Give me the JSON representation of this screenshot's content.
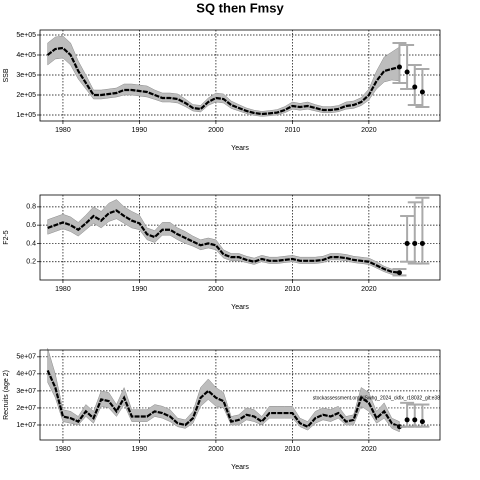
{
  "title": "SQ then Fmsy",
  "chart_data": [
    {
      "type": "line",
      "y_label": "SSB",
      "x_label": "Years",
      "xlim": [
        1977,
        2029.3
      ],
      "xticks": [
        1980,
        1990,
        2000,
        2010,
        2020
      ],
      "ylim": [
        70000,
        525000
      ],
      "yticks": [
        {
          "value": 100000,
          "label": "1e+05"
        },
        {
          "value": 200000,
          "label": "2e+05"
        },
        {
          "value": 300000,
          "label": "3e+05"
        },
        {
          "value": 400000,
          "label": "4e+05"
        },
        {
          "value": 500000,
          "label": "5e+05"
        }
      ],
      "grid": true,
      "color": "#000000",
      "band_color": "#bdbdbd",
      "x": [
        1978,
        1979,
        1980,
        1981,
        1982,
        1983,
        1984,
        1985,
        1986,
        1987,
        1988,
        1989,
        1990,
        1991,
        1992,
        1993,
        1994,
        1995,
        1996,
        1997,
        1998,
        1999,
        2000,
        2001,
        2002,
        2003,
        2004,
        2005,
        2006,
        2007,
        2008,
        2009,
        2010,
        2011,
        2012,
        2013,
        2014,
        2015,
        2016,
        2017,
        2018,
        2019,
        2020,
        2021,
        2022,
        2023,
        2024
      ],
      "values": [
        400000,
        430000,
        435000,
        400000,
        320000,
        260000,
        200000,
        200000,
        205000,
        210000,
        225000,
        225000,
        220000,
        215000,
        200000,
        185000,
        185000,
        180000,
        160000,
        135000,
        130000,
        165000,
        185000,
        180000,
        150000,
        135000,
        120000,
        110000,
        105000,
        108000,
        112000,
        125000,
        145000,
        140000,
        145000,
        135000,
        125000,
        125000,
        130000,
        145000,
        150000,
        165000,
        200000,
        270000,
        320000,
        330000,
        340000
      ],
      "lower": [
        350000,
        380000,
        385000,
        350000,
        280000,
        230000,
        180000,
        180000,
        185000,
        190000,
        200000,
        200000,
        195000,
        190000,
        178000,
        165000,
        165000,
        160000,
        142000,
        120000,
        115000,
        148000,
        165000,
        160000,
        133000,
        120000,
        107000,
        98000,
        93000,
        96000,
        100000,
        111000,
        129000,
        124000,
        129000,
        120000,
        111000,
        111000,
        116000,
        129000,
        133000,
        147000,
        175000,
        230000,
        265000,
        275000,
        270000
      ],
      "upper": [
        460000,
        490000,
        495000,
        460000,
        370000,
        300000,
        225000,
        225000,
        230000,
        235000,
        255000,
        255000,
        250000,
        245000,
        225000,
        210000,
        210000,
        205000,
        180000,
        152000,
        148000,
        185000,
        210000,
        205000,
        170000,
        152000,
        135000,
        124000,
        118000,
        122000,
        127000,
        142000,
        165000,
        158000,
        165000,
        152000,
        142000,
        142000,
        147000,
        165000,
        170000,
        187000,
        230000,
        320000,
        390000,
        415000,
        440000
      ],
      "projection": {
        "x": [
          2024,
          2025,
          2026,
          2027
        ],
        "values": [
          340000,
          315000,
          240000,
          215000
        ],
        "lower": [
          260000,
          230000,
          150000,
          140000
        ],
        "upper": [
          460000,
          450000,
          350000,
          330000
        ],
        "color": "#000000",
        "bar_color": "#aaaaaa"
      }
    },
    {
      "type": "line",
      "y_label": "F2-5",
      "x_label": "Years",
      "xlim": [
        1977,
        2029.3
      ],
      "xticks": [
        1980,
        1990,
        2000,
        2010,
        2020
      ],
      "ylim": [
        0.0,
        0.93
      ],
      "yticks": [
        0.2,
        0.4,
        0.6,
        0.8
      ],
      "grid": true,
      "color": "#000000",
      "band_color": "#bdbdbd",
      "x": [
        1978,
        1979,
        1980,
        1981,
        1982,
        1983,
        1984,
        1985,
        1986,
        1987,
        1988,
        1989,
        1990,
        1991,
        1992,
        1993,
        1994,
        1995,
        1996,
        1997,
        1998,
        1999,
        2000,
        2001,
        2002,
        2003,
        2004,
        2005,
        2006,
        2007,
        2008,
        2009,
        2010,
        2011,
        2012,
        2013,
        2014,
        2015,
        2016,
        2017,
        2018,
        2019,
        2020,
        2021,
        2022,
        2023,
        2024
      ],
      "values": [
        0.57,
        0.6,
        0.63,
        0.6,
        0.55,
        0.62,
        0.7,
        0.65,
        0.73,
        0.76,
        0.7,
        0.65,
        0.62,
        0.5,
        0.47,
        0.55,
        0.55,
        0.5,
        0.46,
        0.42,
        0.38,
        0.4,
        0.38,
        0.28,
        0.25,
        0.25,
        0.22,
        0.2,
        0.23,
        0.21,
        0.21,
        0.22,
        0.23,
        0.21,
        0.21,
        0.21,
        0.22,
        0.25,
        0.25,
        0.24,
        0.22,
        0.21,
        0.2,
        0.16,
        0.12,
        0.09,
        0.08
      ],
      "lower": [
        0.5,
        0.53,
        0.56,
        0.53,
        0.48,
        0.55,
        0.62,
        0.57,
        0.64,
        0.67,
        0.62,
        0.57,
        0.55,
        0.44,
        0.41,
        0.49,
        0.49,
        0.44,
        0.4,
        0.37,
        0.33,
        0.35,
        0.33,
        0.24,
        0.21,
        0.21,
        0.19,
        0.17,
        0.2,
        0.18,
        0.18,
        0.19,
        0.2,
        0.18,
        0.18,
        0.18,
        0.19,
        0.22,
        0.22,
        0.21,
        0.19,
        0.18,
        0.17,
        0.13,
        0.09,
        0.06,
        0.05
      ],
      "upper": [
        0.66,
        0.69,
        0.72,
        0.69,
        0.63,
        0.71,
        0.8,
        0.75,
        0.84,
        0.88,
        0.8,
        0.75,
        0.71,
        0.57,
        0.54,
        0.63,
        0.63,
        0.57,
        0.53,
        0.48,
        0.44,
        0.46,
        0.44,
        0.33,
        0.29,
        0.29,
        0.26,
        0.24,
        0.27,
        0.25,
        0.25,
        0.26,
        0.27,
        0.25,
        0.25,
        0.25,
        0.26,
        0.29,
        0.29,
        0.28,
        0.26,
        0.25,
        0.24,
        0.2,
        0.15,
        0.12,
        0.11
      ],
      "projection": {
        "x": [
          2024,
          2025,
          2026,
          2027
        ],
        "values": [
          0.08,
          0.4,
          0.4,
          0.4
        ],
        "lower": [
          0.05,
          0.2,
          0.18,
          0.18
        ],
        "upper": [
          0.12,
          0.7,
          0.85,
          0.9
        ],
        "color": "#000000",
        "bar_color": "#aaaaaa"
      }
    },
    {
      "type": "line",
      "y_label": "Recruits (age 2)",
      "x_label": "Years",
      "annotation": "stockassessment.org/NSwhg_2024_ckfix_r18032_git:e38",
      "xlim": [
        1977,
        2029.3
      ],
      "xticks": [
        1980,
        1990,
        2000,
        2010,
        2020
      ],
      "ylim": [
        1200000.0,
        54000000.0
      ],
      "yticks": [
        {
          "value": 10000000.0,
          "label": "1e+07"
        },
        {
          "value": 20000000.0,
          "label": "2e+07"
        },
        {
          "value": 30000000.0,
          "label": "3e+07"
        },
        {
          "value": 40000000.0,
          "label": "4e+07"
        },
        {
          "value": 50000000.0,
          "label": "5e+07"
        }
      ],
      "grid": true,
      "color": "#000000",
      "band_color": "#bdbdbd",
      "x": [
        1978,
        1979,
        1980,
        1981,
        1982,
        1983,
        1984,
        1985,
        1986,
        1987,
        1988,
        1989,
        1990,
        1991,
        1992,
        1993,
        1994,
        1995,
        1996,
        1997,
        1998,
        1999,
        2000,
        2001,
        2002,
        2003,
        2004,
        2005,
        2006,
        2007,
        2008,
        2009,
        2010,
        2011,
        2012,
        2013,
        2014,
        2015,
        2016,
        2017,
        2018,
        2019,
        2020,
        2021,
        2022,
        2023,
        2024
      ],
      "values": [
        42000000.0,
        32000000.0,
        15000000.0,
        14000000.0,
        12000000.0,
        18000000.0,
        14000000.0,
        25000000.0,
        24000000.0,
        18000000.0,
        26000000.0,
        15000000.0,
        15000000.0,
        15000000.0,
        18000000.0,
        17000000.0,
        15000000.0,
        11000000.0,
        10000000.0,
        14000000.0,
        26000000.0,
        30000000.0,
        26000000.0,
        24000000.0,
        12000000.0,
        13000000.0,
        16000000.0,
        15000000.0,
        12000000.0,
        17000000.0,
        17000000.0,
        17000000.0,
        17000000.0,
        11000000.0,
        9000000.0,
        14000000.0,
        16000000.0,
        15000000.0,
        17000000.0,
        12000000.0,
        13000000.0,
        26000000.0,
        23000000.0,
        14000000.0,
        18000000.0,
        11000000.0,
        9000000.0
      ],
      "lower": [
        35000000.0,
        26000000.0,
        12000000.0,
        11000000.0,
        10000000.0,
        15000000.0,
        11000000.0,
        21000000.0,
        20000000.0,
        15000000.0,
        22000000.0,
        12000000.0,
        12000000.0,
        12000000.0,
        15000000.0,
        14000000.0,
        12000000.0,
        9000000.0,
        8000000.0,
        11000000.0,
        21000000.0,
        25000000.0,
        21000000.0,
        20000000.0,
        10000000.0,
        10000000.0,
        13000000.0,
        12000000.0,
        10000000.0,
        14000000.0,
        14000000.0,
        14000000.0,
        14000000.0,
        9000000.0,
        7000000.0,
        11000000.0,
        13000000.0,
        12000000.0,
        14000000.0,
        10000000.0,
        10000000.0,
        21000000.0,
        18000000.0,
        11000000.0,
        14000000.0,
        8000000.0,
        6000000.0
      ],
      "upper": [
        55000000.0,
        40000000.0,
        19000000.0,
        18000000.0,
        15000000.0,
        22000000.0,
        18000000.0,
        30000000.0,
        29000000.0,
        22000000.0,
        32000000.0,
        19000000.0,
        19000000.0,
        19000000.0,
        22000000.0,
        21000000.0,
        19000000.0,
        14000000.0,
        13000000.0,
        18000000.0,
        32000000.0,
        37000000.0,
        32000000.0,
        29000000.0,
        15000000.0,
        16000000.0,
        20000000.0,
        19000000.0,
        15000000.0,
        21000000.0,
        21000000.0,
        21000000.0,
        21000000.0,
        14000000.0,
        12000000.0,
        18000000.0,
        20000000.0,
        19000000.0,
        21000000.0,
        15000000.0,
        16000000.0,
        32000000.0,
        29000000.0,
        18000000.0,
        23000000.0,
        14000000.0,
        12000000.0
      ],
      "projection": {
        "x": [
          2024,
          2025,
          2026,
          2027
        ],
        "values": [
          9000000.0,
          13000000.0,
          13000000.0,
          12000000.0
        ],
        "lower": [
          9000000.0,
          9000000.0,
          9000000.0,
          9000000.0
        ],
        "upper": [
          9000000.0,
          23000000.0,
          22000000.0,
          22000000.0
        ],
        "color": "#000000",
        "bar_color": "#aaaaaa"
      }
    }
  ]
}
